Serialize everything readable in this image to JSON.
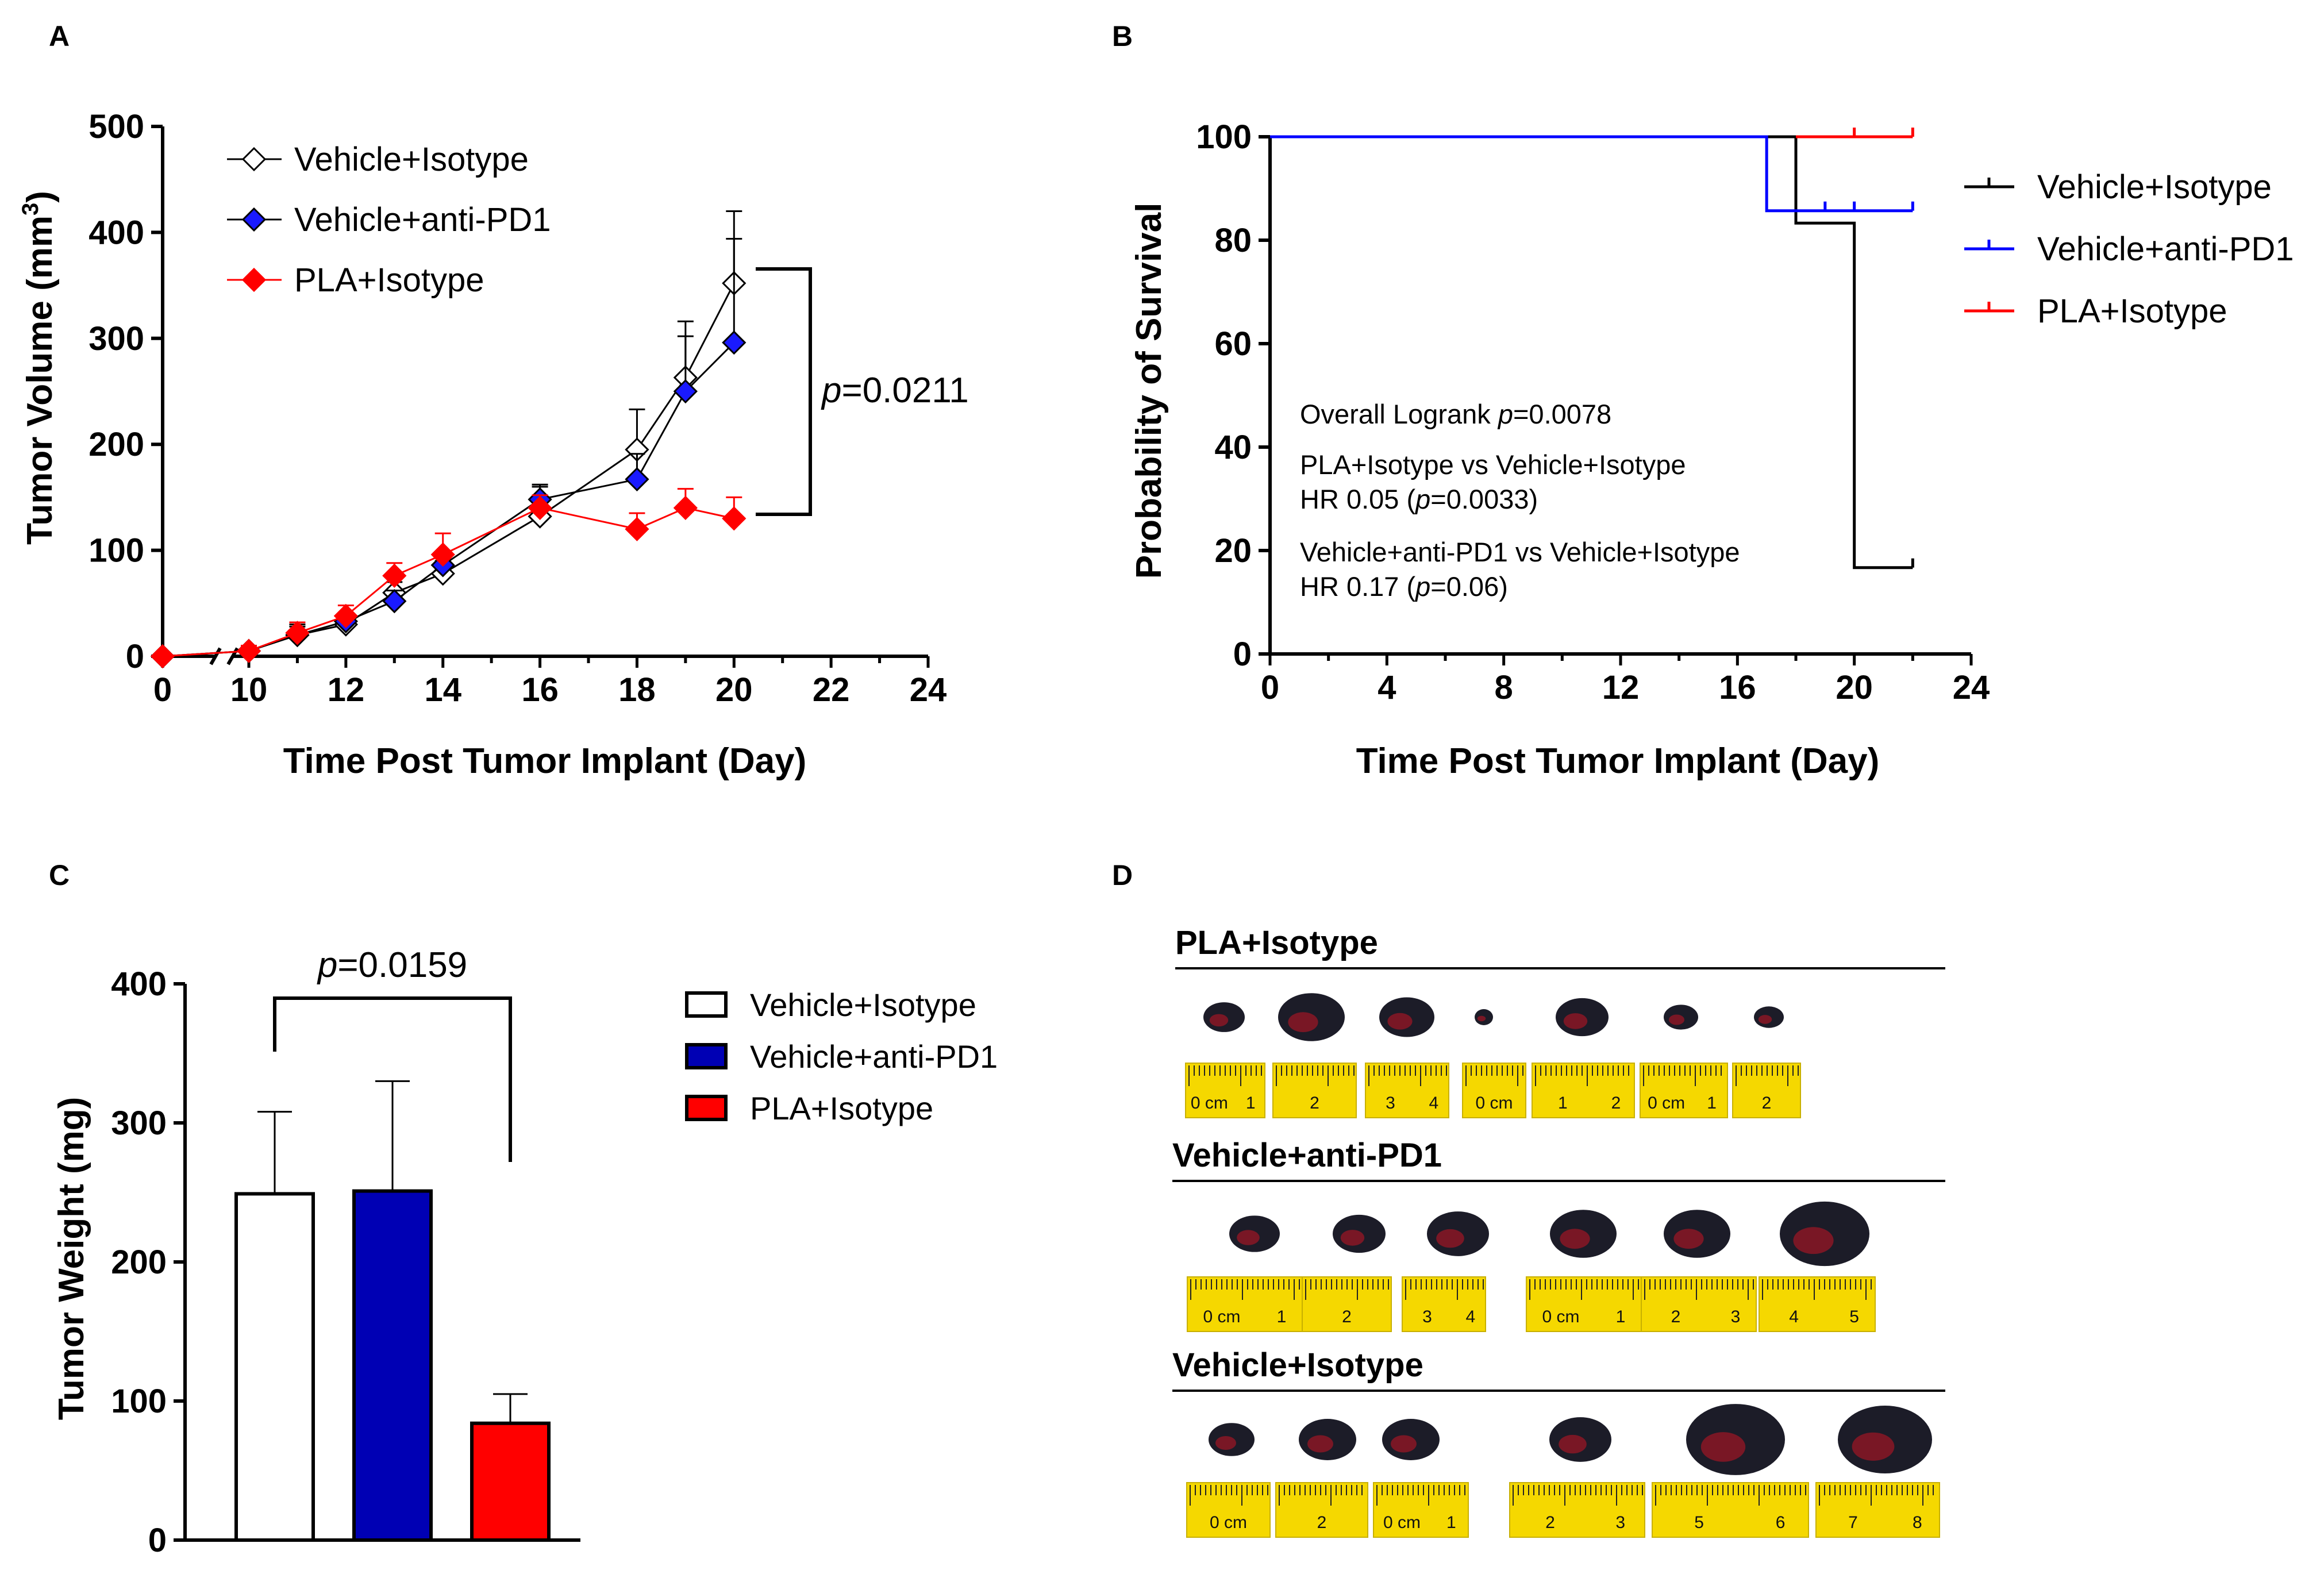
{
  "figure": {
    "panel_labels": [
      "A",
      "B",
      "C",
      "D"
    ]
  },
  "chart_data": [
    {
      "panel": "A",
      "type": "line",
      "xlabel": "Time Post Tumor Implant (Day)",
      "ylabel_main": "Tumor Volume (mm",
      "ylabel_sup": "3",
      "ylabel_close": ")",
      "x_ticks": [
        0,
        10,
        12,
        14,
        16,
        18,
        20,
        22,
        24
      ],
      "x_tick_labels": [
        "0",
        "10",
        "12",
        "14",
        "16",
        "18",
        "20",
        "22",
        "24"
      ],
      "y_ticks": [
        0,
        100,
        200,
        300,
        400,
        500
      ],
      "y_tick_labels": [
        "0",
        "100",
        "200",
        "300",
        "400",
        "500"
      ],
      "ylim": [
        0,
        500
      ],
      "x_axis_break": true,
      "series": [
        {
          "name": "Vehicle+Isotype",
          "color": "#000000",
          "fill": "#ffffff",
          "marker": "diamond-open",
          "x": [
            0,
            10,
            11,
            12,
            13,
            14,
            16,
            18,
            19,
            20
          ],
          "y": [
            0,
            5,
            20,
            30,
            60,
            78,
            132,
            195,
            263,
            352
          ],
          "err": [
            0,
            5,
            10,
            8,
            10,
            12,
            28,
            38,
            53,
            68
          ]
        },
        {
          "name": "Vehicle+anti-PD1",
          "color": "#000000",
          "fill": "#1a1aff",
          "marker": "diamond-filled",
          "x": [
            0,
            10,
            11,
            12,
            13,
            14,
            16,
            18,
            19,
            20
          ],
          "y": [
            0,
            5,
            20,
            33,
            52,
            86,
            148,
            167,
            250,
            296
          ],
          "err": [
            0,
            5,
            8,
            7,
            10,
            12,
            14,
            24,
            52,
            98
          ]
        },
        {
          "name": "PLA+Isotype",
          "color": "#ff0000",
          "fill": "#ff0000",
          "marker": "diamond-filled",
          "x": [
            0,
            10,
            11,
            12,
            13,
            14,
            16,
            18,
            19,
            20
          ],
          "y": [
            0,
            5,
            22,
            38,
            76,
            96,
            140,
            120,
            140,
            130
          ],
          "err": [
            0,
            5,
            10,
            10,
            12,
            20,
            12,
            15,
            18,
            20
          ]
        }
      ],
      "annotation": {
        "italic": "p",
        "text": "=0.0211"
      }
    },
    {
      "panel": "B",
      "type": "line",
      "subtype": "kaplan-meier",
      "xlabel": "Time Post Tumor Implant (Day)",
      "ylabel": "Probability of Survival",
      "x_ticks": [
        0,
        4,
        8,
        12,
        16,
        20,
        24
      ],
      "x_tick_labels": [
        "0",
        "4",
        "8",
        "12",
        "16",
        "20",
        "24"
      ],
      "y_ticks": [
        0,
        20,
        40,
        60,
        80,
        100
      ],
      "y_tick_labels": [
        "0",
        "20",
        "40",
        "60",
        "80",
        "100"
      ],
      "xlim": [
        0,
        24
      ],
      "ylim": [
        0,
        100
      ],
      "series": [
        {
          "name": "Vehicle+Isotype",
          "color": "#000000",
          "steps": [
            [
              0,
              100
            ],
            [
              18,
              100
            ],
            [
              18,
              83.3
            ],
            [
              20,
              83.3
            ],
            [
              20,
              16.7
            ],
            [
              22,
              16.7
            ]
          ],
          "censor": [
            [
              22,
              16.7
            ]
          ]
        },
        {
          "name": "Vehicle+anti-PD1",
          "color": "#0000ff",
          "steps": [
            [
              0,
              100
            ],
            [
              17,
              100
            ],
            [
              17,
              85.7
            ],
            [
              22,
              85.7
            ]
          ],
          "censor": [
            [
              19,
              85.7
            ],
            [
              20,
              85.7
            ],
            [
              22,
              85.7
            ]
          ]
        },
        {
          "name": "PLA+Isotype",
          "color": "#ff0000",
          "steps": [
            [
              18,
              100
            ],
            [
              22,
              100
            ]
          ],
          "censor": [
            [
              20,
              100
            ],
            [
              22,
              100
            ]
          ]
        }
      ],
      "annotations": {
        "logrank_pre": "Overall Logrank ",
        "logrank_p": "p",
        "logrank_val": "=0.0078",
        "cmp1": "PLA+Isotype vs Vehicle+Isotype",
        "hr1_pre": "HR 0.05 (",
        "hr1_p": "p",
        "hr1_val": "=0.0033)",
        "cmp2": "Vehicle+anti-PD1 vs Vehicle+Isotype",
        "hr2_pre": "HR 0.17 (",
        "hr2_p": "p",
        "hr2_val": "=0.06)"
      }
    },
    {
      "panel": "C",
      "type": "bar",
      "ylabel": "Tumor Weight (mg)",
      "y_ticks": [
        0,
        100,
        200,
        300,
        400
      ],
      "y_tick_labels": [
        "0",
        "100",
        "200",
        "300",
        "400"
      ],
      "ylim": [
        0,
        400
      ],
      "categories": [
        "Vehicle+Isotype",
        "Vehicle+anti-PD1",
        "PLA+Isotype"
      ],
      "values": [
        249,
        251,
        84
      ],
      "errors": [
        59,
        79,
        21
      ],
      "colors": [
        "#ffffff",
        "#0000b4",
        "#ff0000"
      ],
      "annotation": {
        "italic": "p",
        "text": "=0.0159"
      }
    }
  ],
  "panel_d": {
    "groups": [
      {
        "label": "PLA+Isotype",
        "tumors": 7,
        "rulers": [
          [
            "0 cm",
            "1"
          ],
          [
            "2"
          ],
          [
            "3",
            "4"
          ],
          [
            "0 cm"
          ],
          [
            "1",
            "2"
          ],
          [
            "0 cm",
            "1"
          ],
          [
            "2"
          ]
        ]
      },
      {
        "label": "Vehicle+anti-PD1",
        "tumors": 6,
        "rulers": [
          [
            "0 cm",
            "1"
          ],
          [
            "2"
          ],
          [
            "3",
            "4"
          ],
          [
            "0 cm",
            "1"
          ],
          [
            "2",
            "3"
          ],
          [
            "4",
            "5"
          ]
        ]
      },
      {
        "label": "Vehicle+Isotype",
        "tumors": 6,
        "rulers": [
          [
            "0 cm"
          ],
          [
            "2"
          ],
          [
            "0 cm",
            "1"
          ],
          [
            "2",
            "3"
          ],
          [
            "5",
            "6"
          ],
          [
            "7",
            "8"
          ]
        ]
      }
    ]
  }
}
